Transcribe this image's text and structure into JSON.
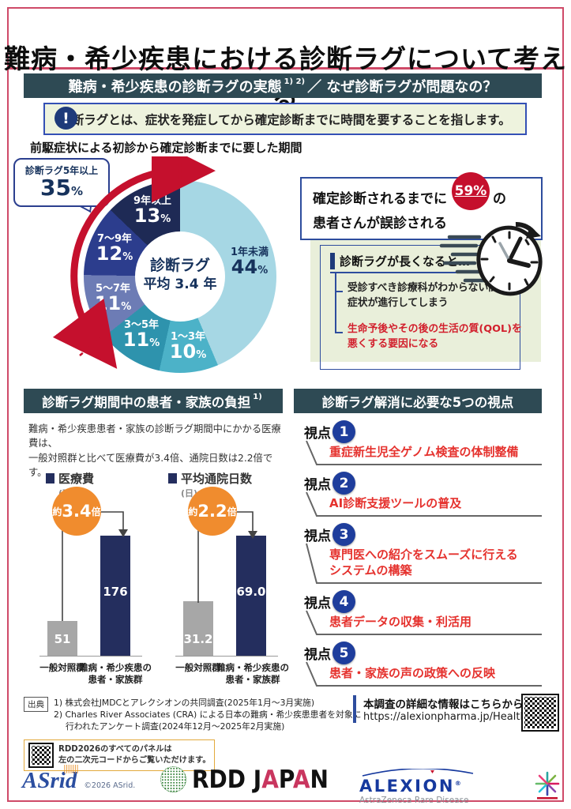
{
  "header": {
    "title": "難病・希少疾患における診断ラグについて考える"
  },
  "colors": {
    "frame": "#cf4a68",
    "section_bar": "#2e4a54",
    "accent_red": "#c5102d",
    "viewpoint_red": "#e5322e",
    "navy": "#242e5e",
    "royal_blue": "#1e3d9c",
    "orange": "#f08c2e",
    "pale_green": "#eef3de"
  },
  "section1": {
    "bar": {
      "part1": "難病・希少疾患の診断ラグの実態",
      "sup": "1) 2)",
      "part2": "／ なぜ診断ラグが問題なの？"
    },
    "callout": {
      "mark": "!",
      "text": "診断ラグとは、症状を発症してから確定診断までに時間を要することを指します。"
    },
    "misdiagnosis": {
      "t1": "確定診断されるまでに",
      "pct": "59%",
      "t2": "の",
      "t3": "患者さんが誤診される"
    },
    "consequences": {
      "title": "診断ラグが長くなると…",
      "item1_l1": "受診すべき診療科がわからない間に",
      "item1_l2": "症状が進行してしまう",
      "item2_l1": "生命予後やその後の生活の質(QOL)を",
      "item2_l2": "悪くする要因になる"
    }
  },
  "section2": {
    "left_bar": {
      "text": "診断ラグ期間中の患者・家族の負担",
      "sup": "1)"
    },
    "right_bar": {
      "text": "診断ラグ解消に必要な5つの視点"
    },
    "burden_line1": "難病・希少疾患患者・家族の診断ラグ期間中にかかる医療費は、",
    "burden_line2": "一般対照群と比べて医療費が3.4倍、通院日数は2.2倍です。",
    "viewpoints": [
      {
        "label": "視点",
        "num": "1",
        "lines": [
          "重症新生児全ゲノム検査の体制整備"
        ]
      },
      {
        "label": "視点",
        "num": "2",
        "lines": [
          "AI診断支援ツールの普及"
        ]
      },
      {
        "label": "視点",
        "num": "3",
        "lines": [
          "専門医への紹介をスムーズに行える",
          "システムの構築"
        ]
      },
      {
        "label": "視点",
        "num": "4",
        "lines": [
          "患者データの収集・利活用"
        ]
      },
      {
        "label": "視点",
        "num": "5",
        "lines": [
          "患者・家族の声の政策への反映"
        ]
      }
    ]
  },
  "chart_data": [
    {
      "type": "pie",
      "subtype": "donut",
      "title": "前駆症状による初診から確定診断までに要した期間",
      "categories": [
        "1年未満",
        "1〜3年",
        "3〜5年",
        "5〜7年",
        "7〜9年",
        "9年以上"
      ],
      "values": [
        44,
        10,
        11,
        11,
        12,
        13
      ],
      "unit": "%",
      "colors": [
        "#a6d7e4",
        "#4cb2c8",
        "#2e93ad",
        "#6d7cb5",
        "#2c3d8d",
        "#1e2a55"
      ],
      "center": {
        "line1": "診断ラグ",
        "line2": "平均 3.4 年"
      },
      "annotation": {
        "label": "診断ラグ5年以上",
        "value": "35",
        "unit": "%"
      }
    },
    {
      "type": "bar",
      "title": "医療費",
      "unit": "(万円)",
      "categories": [
        "一般対照群",
        "難病・希少疾患の患者・家族群"
      ],
      "axis_labels": [
        [
          "一般対照群"
        ],
        [
          "難病・希少疾患の",
          "患者・家族群"
        ]
      ],
      "values": [
        51,
        176
      ],
      "value_labels": [
        "51",
        "176"
      ],
      "multiplier": {
        "prefix": "約",
        "value": "3.4",
        "suffix": "倍"
      },
      "bar_colors": [
        "#a7a7a7",
        "#242e5e"
      ]
    },
    {
      "type": "bar",
      "title": "平均通院日数",
      "unit": "(日)",
      "categories": [
        "一般対照群",
        "難病・希少疾患の患者・家族群"
      ],
      "axis_labels": [
        [
          "一般対照群"
        ],
        [
          "難病・希少疾患の",
          "患者・家族群"
        ]
      ],
      "values": [
        31.2,
        69
      ],
      "value_labels": [
        "31.2",
        "69.0"
      ],
      "multiplier": {
        "prefix": "約",
        "value": "2.2",
        "suffix": "倍"
      },
      "bar_colors": [
        "#a7a7a7",
        "#242e5e"
      ]
    }
  ],
  "footer": {
    "sources": {
      "label": "出典",
      "line1": "1) 株式会社JMDCとアレクシオンの共同調査(2025年1月〜3月実施)",
      "line2": "2) Charles River Associates (CRA) による日本の難病・希少疾患患者を対象に",
      "line3": "行われたアンケート調査(2024年12月〜2025年2月実施)"
    },
    "qr_panel": {
      "line1": "RDD2026のすべてのパネルは",
      "line2": "左の二次元コードからご覧いただけます。"
    },
    "survey_info": {
      "line1": "本調査の詳細な情報はこちらから",
      "line2": "https://alexionpharma.jp/HealthEquity"
    },
    "logos": {
      "asrid": "ASrid",
      "asrid_copy": "©2026 ASrid.",
      "rdd_p1": "RDD J",
      "rdd_a1": "A",
      "rdd_p2": "P",
      "rdd_a2": "A",
      "rdd_n": "N",
      "alexion": "ALEXION",
      "alexion_reg": "®",
      "alexion_sub": "AstraZeneca Rare Disease"
    }
  }
}
